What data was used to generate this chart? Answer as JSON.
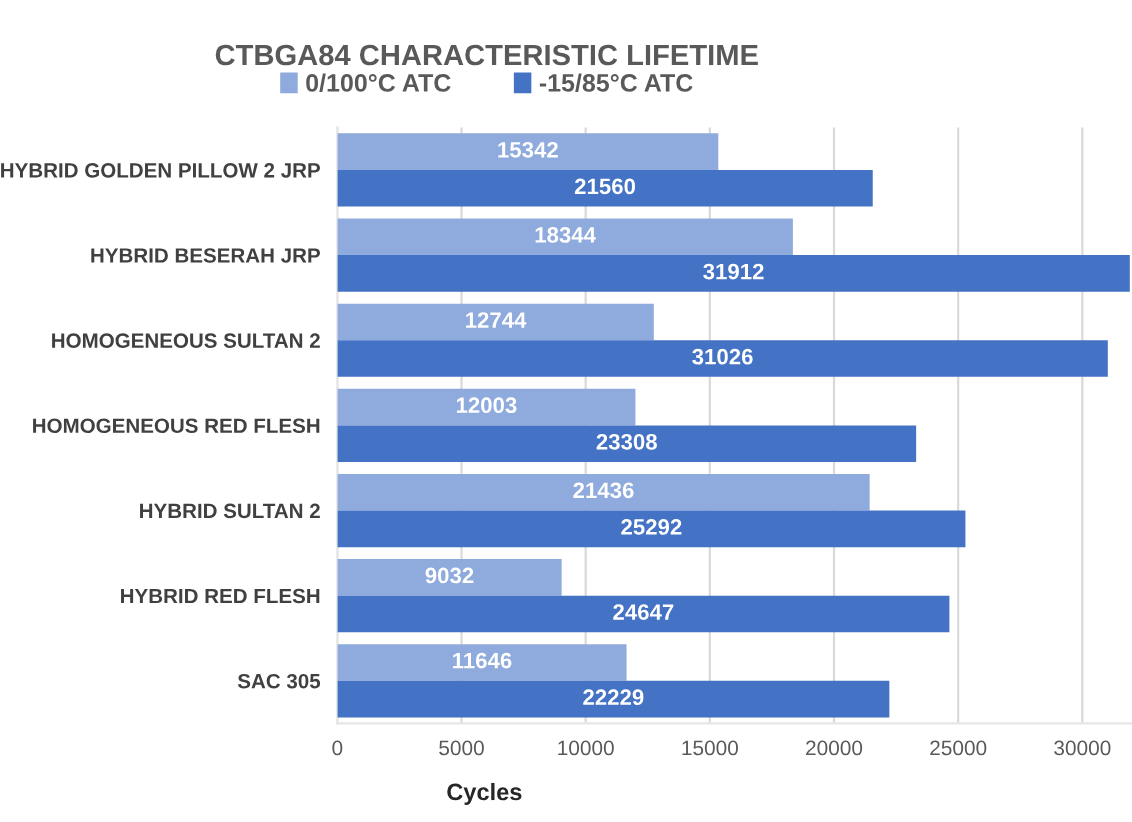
{
  "chart_data": {
    "type": "bar",
    "orientation": "horizontal",
    "title": "CTBGA84 CHARACTERISTIC LIFETIME",
    "xlabel": "Cycles",
    "categories": [
      "HYBRID GOLDEN PILLOW 2 JRP",
      "HYBRID BESERAH JRP",
      "HOMOGENEOUS SULTAN 2",
      "HOMOGENEOUS RED FLESH",
      "HYBRID SULTAN 2",
      "HYBRID RED FLESH",
      "SAC 305"
    ],
    "series": [
      {
        "name": "0/100°C ATC",
        "color": "#8faadc",
        "values": [
          15342,
          18344,
          12744,
          12003,
          21436,
          9032,
          11646
        ]
      },
      {
        "name": "-15/85°C ATC",
        "color": "#4472c4",
        "values": [
          21560,
          31912,
          31026,
          23308,
          25292,
          24647,
          22229
        ]
      }
    ],
    "xlim": [
      0,
      32000
    ],
    "xticks": [
      0,
      5000,
      10000,
      15000,
      20000,
      25000,
      30000
    ],
    "data_labels": true,
    "grid": "x",
    "legend": "top"
  }
}
